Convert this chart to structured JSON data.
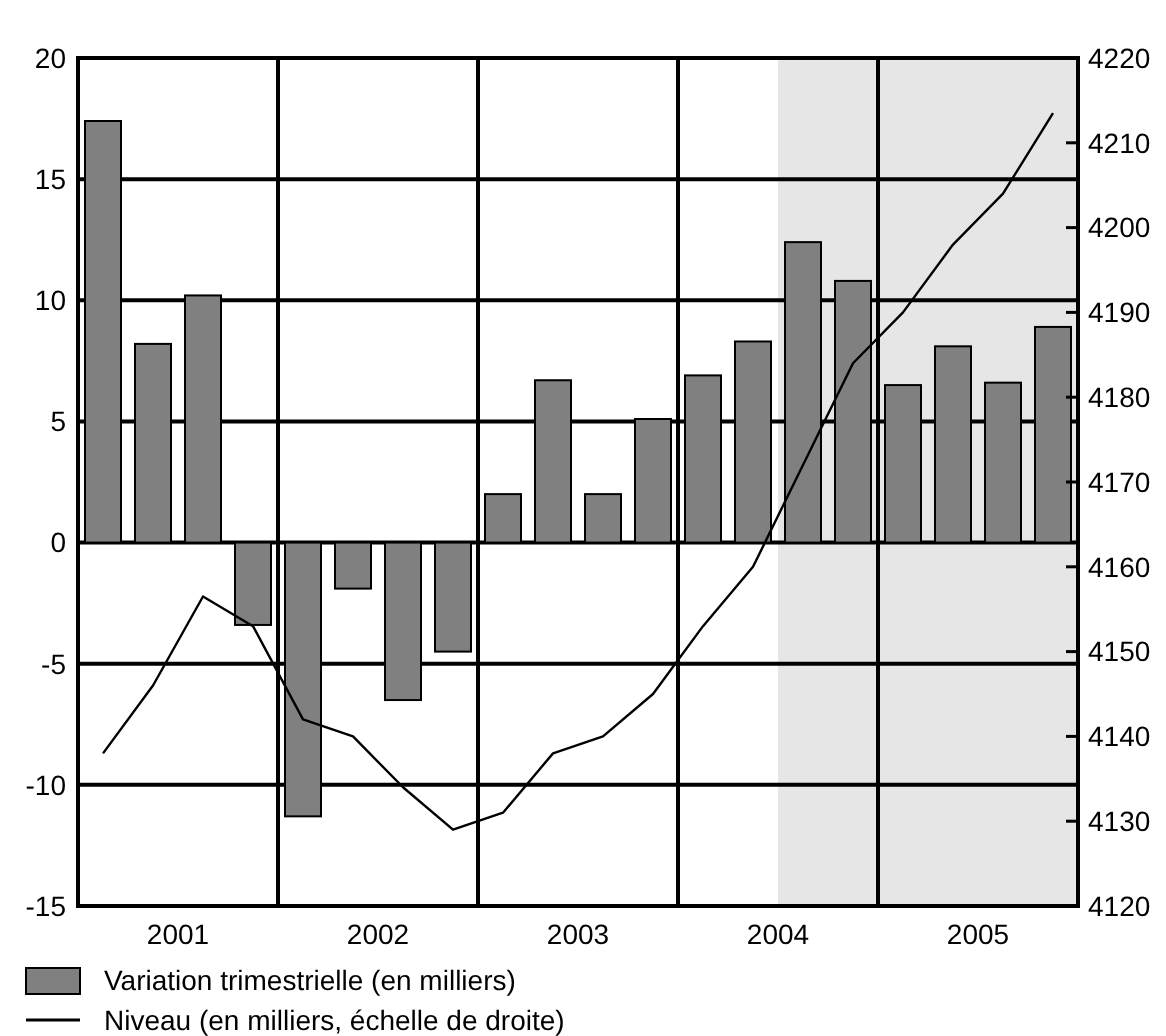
{
  "chart_data": {
    "type": "bar",
    "x": [
      2001.125,
      2001.375,
      2001.625,
      2001.875,
      2002.125,
      2002.375,
      2002.625,
      2002.875,
      2003.125,
      2003.375,
      2003.625,
      2003.875,
      2004.125,
      2004.375,
      2004.625,
      2004.875,
      2005.125,
      2005.375,
      2005.625,
      2005.875
    ],
    "series": [
      {
        "name": "Variation trimestrielle (en milliers)",
        "color": "#808080",
        "values": [
          17.4,
          8.2,
          10.2,
          -3.4,
          -11.3,
          -1.9,
          -6.5,
          -4.5,
          2.0,
          6.7,
          2.0,
          5.1,
          6.9,
          8.3,
          12.4,
          10.8,
          6.5,
          8.1,
          6.6,
          8.9
        ]
      },
      {
        "name": "Niveau (en milliers, échelle de droite)",
        "type": "line",
        "axis": "y2",
        "color": "#000000",
        "values": [
          4138,
          4146,
          4156.5,
          4153,
          4142,
          4140,
          4134,
          4129,
          4131,
          4138,
          4140,
          4145,
          4153,
          4160,
          4172,
          4184,
          4190,
          4198,
          4204,
          4213.5
        ]
      }
    ],
    "xlim": [
      2001,
      2006
    ],
    "xticks": [
      {
        "value": 2001.5,
        "label": "2001"
      },
      {
        "value": 2002,
        "label": null
      },
      {
        "value": 2002.5,
        "label": "2002"
      },
      {
        "value": 2003,
        "label": null
      },
      {
        "value": 2003.5,
        "label": "2003"
      },
      {
        "value": 2004,
        "label": null
      },
      {
        "value": 2004.5,
        "label": "2004"
      },
      {
        "value": 2005,
        "label": null
      },
      {
        "value": 2005.5,
        "label": "2005"
      }
    ],
    "ylim": [
      -15,
      20
    ],
    "yticks": [
      -15,
      -10,
      -5,
      0,
      5,
      10,
      15,
      20
    ],
    "y2lim": [
      4120,
      4220
    ],
    "y2ticks": [
      4120,
      4130,
      4140,
      4150,
      4160,
      4170,
      4180,
      4190,
      4200,
      4210,
      4220
    ],
    "bands": [
      {
        "axis": "x",
        "from": 2004.5,
        "to": 2006,
        "color": "#e6e6e6"
      }
    ],
    "grid": true,
    "legend": "bottom"
  }
}
